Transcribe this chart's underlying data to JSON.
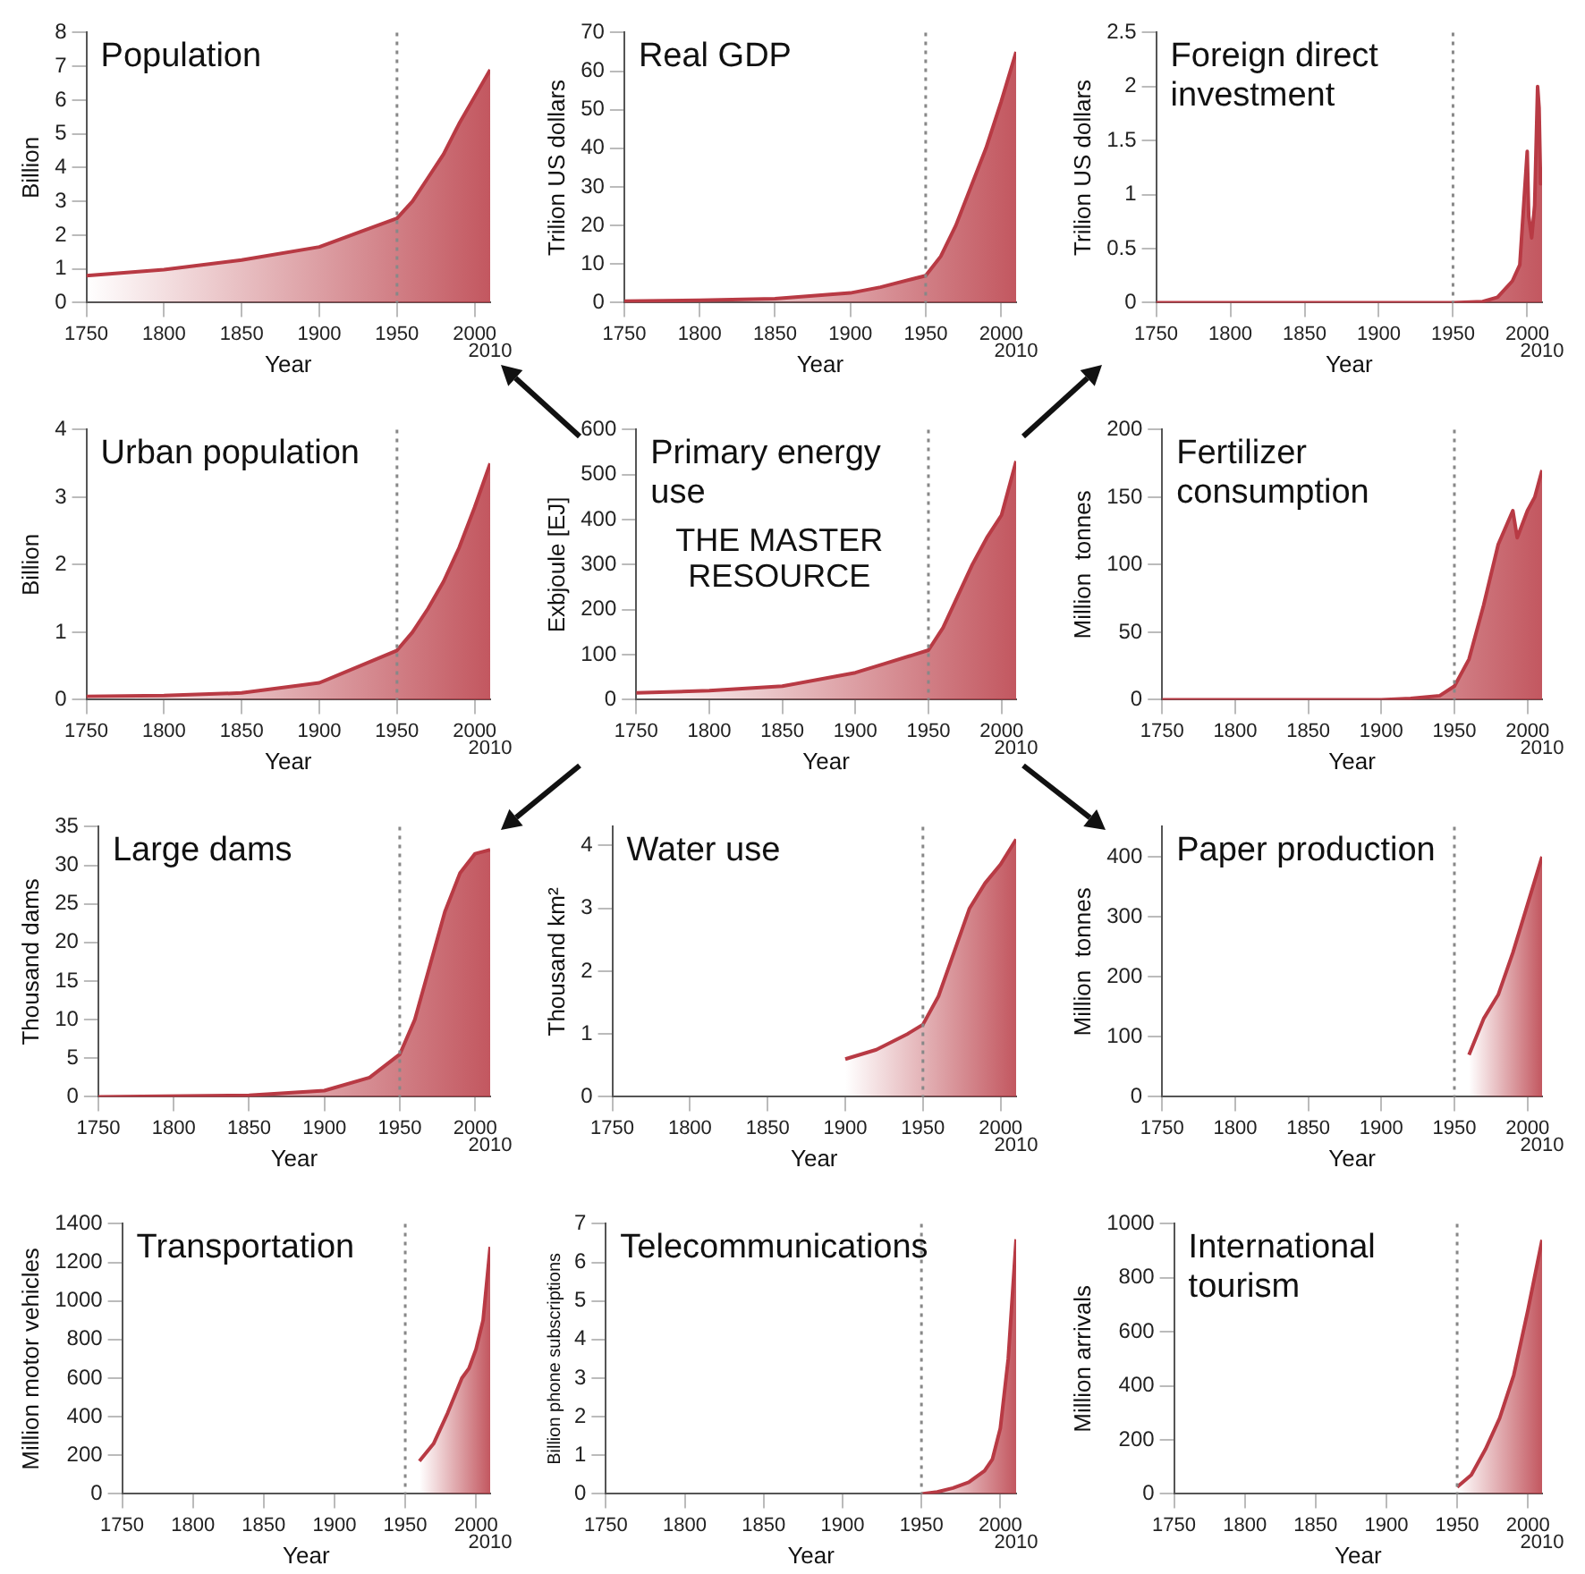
{
  "chart_data": [
    {
      "type": "area",
      "title": "Population",
      "annotations": [
        "2010"
      ],
      "xlabel": "Year",
      "ylabel": "Billion",
      "color": "#b83a44",
      "grid": false,
      "xlim": [
        1750,
        2010
      ],
      "xticks": [
        1750,
        1800,
        1850,
        1900,
        1950,
        2000
      ],
      "ylim": [
        0,
        8
      ],
      "yticks": [
        0,
        1,
        2,
        3,
        4,
        5,
        6,
        7,
        8
      ],
      "ref_lines": [
        {
          "axis": "x",
          "value": 1950,
          "color": "#888888",
          "line_style": "dotted"
        }
      ],
      "x": [
        1750,
        1800,
        1850,
        1900,
        1950,
        1960,
        1970,
        1980,
        1990,
        2000,
        2010
      ],
      "values": [
        0.8,
        0.98,
        1.26,
        1.65,
        2.5,
        3.0,
        3.7,
        4.4,
        5.3,
        6.1,
        6.9
      ]
    },
    {
      "type": "area",
      "title": "Real GDP",
      "annotations": [
        "2010"
      ],
      "xlabel": "Year",
      "ylabel": "Trilion US dollars",
      "color": "#b83a44",
      "grid": false,
      "xlim": [
        1750,
        2010
      ],
      "xticks": [
        1750,
        1800,
        1850,
        1900,
        1950,
        2000
      ],
      "ylim": [
        0,
        70
      ],
      "yticks": [
        0,
        10,
        20,
        30,
        40,
        50,
        60,
        70
      ],
      "ref_lines": [
        {
          "axis": "x",
          "value": 1950,
          "color": "#888888",
          "line_style": "dotted"
        }
      ],
      "x": [
        1750,
        1800,
        1850,
        1900,
        1920,
        1940,
        1950,
        1960,
        1970,
        1980,
        1990,
        2000,
        2010
      ],
      "values": [
        0.4,
        0.6,
        1,
        2.5,
        4,
        6,
        7,
        12,
        20,
        30,
        40,
        52,
        65
      ]
    },
    {
      "type": "area",
      "title": "Foreign direct investment",
      "annotations": [
        "2010"
      ],
      "xlabel": "Year",
      "ylabel": "Trilion US dollars",
      "color": "#b83a44",
      "grid": false,
      "xlim": [
        1750,
        2010
      ],
      "xticks": [
        1750,
        1800,
        1850,
        1900,
        1950,
        2000
      ],
      "ylim": [
        0,
        2.5
      ],
      "yticks": [
        0,
        0.5,
        1,
        1.5,
        2,
        2.5
      ],
      "ref_lines": [
        {
          "axis": "x",
          "value": 1950,
          "color": "#888888",
          "line_style": "dotted"
        }
      ],
      "x": [
        1750,
        1900,
        1950,
        1970,
        1980,
        1990,
        1995,
        2000,
        2001,
        2003,
        2005,
        2007,
        2008,
        2009,
        2010
      ],
      "values": [
        0,
        0,
        0,
        0.01,
        0.05,
        0.2,
        0.35,
        1.4,
        0.8,
        0.6,
        0.9,
        2.0,
        1.8,
        1.1,
        1.2
      ]
    },
    {
      "type": "area",
      "title": "Urban population",
      "annotations": [
        "2010"
      ],
      "xlabel": "Year",
      "ylabel": "Billion",
      "color": "#b83a44",
      "grid": false,
      "xlim": [
        1750,
        2010
      ],
      "xticks": [
        1750,
        1800,
        1850,
        1900,
        1950,
        2000
      ],
      "ylim": [
        0,
        4
      ],
      "yticks": [
        0,
        1,
        2,
        3,
        4
      ],
      "ref_lines": [
        {
          "axis": "x",
          "value": 1950,
          "color": "#888888",
          "line_style": "dotted"
        }
      ],
      "x": [
        1750,
        1800,
        1850,
        1900,
        1950,
        1960,
        1970,
        1980,
        1990,
        2000,
        2010
      ],
      "values": [
        0.05,
        0.06,
        0.1,
        0.25,
        0.73,
        1.0,
        1.35,
        1.75,
        2.25,
        2.85,
        3.5
      ]
    },
    {
      "type": "area",
      "title": "Primary energy use",
      "annotations": [
        "THE MASTER RESOURCE",
        "2010"
      ],
      "xlabel": "Year",
      "ylabel": "Exbjoule [EJ]",
      "color": "#b83a44",
      "grid": false,
      "xlim": [
        1750,
        2010
      ],
      "xticks": [
        1750,
        1800,
        1850,
        1900,
        1950,
        2000
      ],
      "ylim": [
        0,
        600
      ],
      "yticks": [
        0,
        100,
        200,
        300,
        400,
        500,
        600
      ],
      "ref_lines": [
        {
          "axis": "x",
          "value": 1950,
          "color": "#888888",
          "line_style": "dotted"
        }
      ],
      "x": [
        1750,
        1800,
        1850,
        1900,
        1920,
        1940,
        1950,
        1960,
        1970,
        1980,
        1990,
        2000,
        2010
      ],
      "values": [
        15,
        20,
        30,
        60,
        80,
        100,
        110,
        160,
        230,
        300,
        360,
        410,
        530
      ]
    },
    {
      "type": "area",
      "title": "Fertilizer consumption",
      "annotations": [
        "2010"
      ],
      "xlabel": "Year",
      "ylabel": "Million  tonnes",
      "color": "#b83a44",
      "grid": false,
      "xlim": [
        1750,
        2010
      ],
      "xticks": [
        1750,
        1800,
        1850,
        1900,
        1950,
        2000
      ],
      "ylim": [
        0,
        200
      ],
      "yticks": [
        0,
        50,
        100,
        150,
        200
      ],
      "ref_lines": [
        {
          "axis": "x",
          "value": 1950,
          "color": "#888888",
          "line_style": "dotted"
        }
      ],
      "x": [
        1750,
        1900,
        1920,
        1940,
        1950,
        1960,
        1970,
        1980,
        1990,
        1993,
        2000,
        2005,
        2010
      ],
      "values": [
        0,
        0,
        1,
        3,
        10,
        30,
        70,
        115,
        140,
        120,
        140,
        150,
        170
      ]
    },
    {
      "type": "area",
      "title": "Large dams",
      "annotations": [
        "2010"
      ],
      "xlabel": "Year",
      "ylabel": "Thousand dams",
      "color": "#b83a44",
      "grid": false,
      "xlim": [
        1750,
        2010
      ],
      "xticks": [
        1750,
        1800,
        1850,
        1900,
        1950,
        2000
      ],
      "ylim": [
        0,
        35
      ],
      "yticks": [
        0,
        5,
        10,
        15,
        20,
        25,
        30,
        35
      ],
      "ref_lines": [
        {
          "axis": "x",
          "value": 1950,
          "color": "#888888",
          "line_style": "dotted"
        }
      ],
      "x": [
        1750,
        1850,
        1900,
        1930,
        1950,
        1960,
        1970,
        1980,
        1990,
        2000,
        2010
      ],
      "values": [
        0,
        0.2,
        0.8,
        2.5,
        5.5,
        10,
        17,
        24,
        29,
        31.5,
        32
      ]
    },
    {
      "type": "area",
      "title": "Water use",
      "annotations": [
        "2010"
      ],
      "xlabel": "Year",
      "ylabel": "Thousand km²",
      "color": "#b83a44",
      "grid": false,
      "xlim": [
        1750,
        2010
      ],
      "xticks": [
        1750,
        1800,
        1850,
        1900,
        1950,
        2000
      ],
      "ylim": [
        0,
        4.3
      ],
      "yticks": [
        0,
        1,
        2,
        3,
        4
      ],
      "ref_lines": [
        {
          "axis": "x",
          "value": 1950,
          "color": "#888888",
          "line_style": "dotted"
        }
      ],
      "x": [
        1900,
        1920,
        1940,
        1950,
        1960,
        1970,
        1980,
        1990,
        2000,
        2010
      ],
      "values": [
        0.6,
        0.75,
        1.0,
        1.15,
        1.6,
        2.3,
        3.0,
        3.4,
        3.7,
        4.1
      ]
    },
    {
      "type": "area",
      "title": "Paper production",
      "annotations": [
        "2010"
      ],
      "xlabel": "Year",
      "ylabel": "Million  tonnes",
      "color": "#b83a44",
      "grid": false,
      "xlim": [
        1750,
        2010
      ],
      "xticks": [
        1750,
        1800,
        1850,
        1900,
        1950,
        2000
      ],
      "ylim": [
        0,
        450
      ],
      "yticks": [
        0,
        100,
        200,
        300,
        400
      ],
      "ref_lines": [
        {
          "axis": "x",
          "value": 1950,
          "color": "#888888",
          "line_style": "dotted"
        }
      ],
      "x": [
        1960,
        1970,
        1980,
        1990,
        2000,
        2010
      ],
      "values": [
        70,
        130,
        170,
        240,
        320,
        400
      ]
    },
    {
      "type": "area",
      "title": "Transportation",
      "annotations": [
        "2010"
      ],
      "xlabel": "Year",
      "ylabel": "Million motor vehicles",
      "color": "#b83a44",
      "grid": false,
      "xlim": [
        1750,
        2010
      ],
      "xticks": [
        1750,
        1800,
        1850,
        1900,
        1950,
        2000
      ],
      "ylim": [
        0,
        1400
      ],
      "yticks": [
        0,
        200,
        400,
        600,
        800,
        1000,
        1200,
        1400
      ],
      "ref_lines": [
        {
          "axis": "x",
          "value": 1950,
          "color": "#888888",
          "line_style": "dotted"
        }
      ],
      "x": [
        1960,
        1970,
        1980,
        1990,
        1995,
        2000,
        2005,
        2010
      ],
      "values": [
        170,
        260,
        420,
        600,
        650,
        750,
        900,
        1280
      ]
    },
    {
      "type": "area",
      "title": "Telecommunications",
      "annotations": [
        "2010"
      ],
      "xlabel": "Year",
      "ylabel": "Billion phone subscriptions",
      "color": "#b83a44",
      "grid": false,
      "xlim": [
        1750,
        2010
      ],
      "xticks": [
        1750,
        1800,
        1850,
        1900,
        1950,
        2000
      ],
      "ylim": [
        0,
        7
      ],
      "yticks": [
        0,
        1,
        2,
        3,
        4,
        5,
        6,
        7
      ],
      "ref_lines": [
        {
          "axis": "x",
          "value": 1950,
          "color": "#888888",
          "line_style": "dotted"
        }
      ],
      "x": [
        1950,
        1960,
        1970,
        1980,
        1990,
        1995,
        2000,
        2005,
        2010
      ],
      "values": [
        0,
        0.05,
        0.15,
        0.3,
        0.6,
        0.9,
        1.7,
        3.5,
        6.6
      ]
    },
    {
      "type": "area",
      "title": "International tourism",
      "annotations": [
        "2010"
      ],
      "xlabel": "Year",
      "ylabel": "Million arrivals",
      "color": "#b83a44",
      "grid": false,
      "xlim": [
        1750,
        2010
      ],
      "xticks": [
        1750,
        1800,
        1850,
        1900,
        1950,
        2000
      ],
      "ylim": [
        0,
        1000
      ],
      "yticks": [
        0,
        200,
        400,
        600,
        800,
        1000
      ],
      "ref_lines": [
        {
          "axis": "x",
          "value": 1950,
          "color": "#888888",
          "line_style": "dotted"
        }
      ],
      "x": [
        1950,
        1960,
        1970,
        1980,
        1990,
        2000,
        2010
      ],
      "values": [
        25,
        70,
        165,
        280,
        440,
        680,
        940
      ]
    }
  ]
}
